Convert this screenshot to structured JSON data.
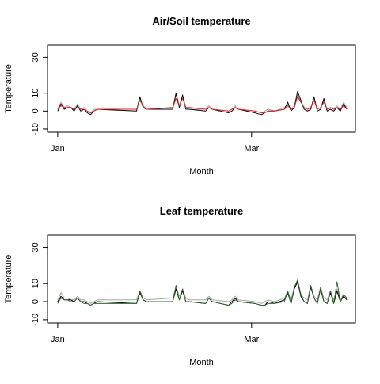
{
  "chart_data": [
    {
      "type": "line",
      "title": "Air/Soil temperature",
      "xlabel": "Month",
      "ylabel": "Temperature",
      "x": [
        0,
        1,
        2,
        3,
        4,
        5,
        6,
        7,
        8,
        9,
        10,
        11,
        12,
        24,
        25,
        26,
        27,
        35,
        36,
        37,
        38,
        39,
        40,
        45,
        46,
        47,
        52,
        53,
        54,
        55,
        60,
        62,
        63,
        64,
        66,
        69,
        70,
        71,
        72,
        73,
        74,
        75,
        76,
        77,
        78,
        79,
        80,
        81,
        82,
        83,
        84,
        85,
        86,
        87,
        88
      ],
      "xlim": [
        -3.1,
        90.6
      ],
      "xticks": [
        {
          "value": 0,
          "label": "Jan"
        },
        {
          "value": 59,
          "label": "Mar"
        }
      ],
      "ylim": [
        -11.8,
        36.8
      ],
      "yticks": [
        -10,
        0,
        10,
        30
      ],
      "series": [
        {
          "color": "#a6a6a6",
          "values": [
            1,
            5,
            2,
            3,
            2,
            1,
            4,
            1,
            2,
            0,
            -1,
            1,
            1,
            1,
            7,
            2,
            1,
            2,
            9,
            3,
            8,
            2,
            1,
            1,
            3,
            1,
            0,
            1,
            3,
            1,
            0,
            -1,
            0,
            1,
            0,
            2,
            4,
            1,
            3,
            9,
            5,
            2,
            1,
            2,
            7,
            1,
            2,
            6,
            1,
            2,
            1,
            3,
            1,
            5,
            2
          ]
        },
        {
          "color": "#000000",
          "values": [
            0,
            4,
            1,
            2,
            2,
            0,
            3,
            0,
            1,
            -1,
            -2,
            0,
            1,
            0,
            8,
            2,
            1,
            1,
            10,
            2,
            9,
            1,
            1,
            0,
            2,
            1,
            -1,
            0,
            2,
            1,
            -1,
            -2,
            -1,
            0,
            0,
            1,
            5,
            0,
            2,
            11,
            6,
            1,
            0,
            1,
            8,
            0,
            1,
            7,
            0,
            1,
            0,
            2,
            0,
            4,
            1
          ]
        },
        {
          "color": "#e0262b",
          "values": [
            1,
            3,
            2,
            2,
            2,
            1,
            2,
            1,
            1,
            0,
            -1,
            0,
            1,
            1,
            6,
            3,
            1,
            2,
            7,
            3,
            7,
            2,
            2,
            1,
            2,
            1,
            0,
            1,
            2,
            1,
            0,
            -1,
            -1,
            0,
            0,
            1,
            3,
            1,
            2,
            8,
            5,
            2,
            1,
            2,
            6,
            1,
            2,
            5,
            1,
            2,
            1,
            2,
            1,
            3,
            1
          ]
        }
      ]
    },
    {
      "type": "line",
      "title": "Leaf temperature",
      "xlabel": "Month",
      "ylabel": "Temperature",
      "x": [
        0,
        1,
        2,
        3,
        4,
        5,
        6,
        7,
        8,
        9,
        10,
        11,
        12,
        24,
        25,
        26,
        27,
        35,
        36,
        37,
        38,
        39,
        40,
        45,
        46,
        47,
        52,
        53,
        54,
        55,
        60,
        62,
        63,
        64,
        66,
        69,
        70,
        71,
        72,
        73,
        74,
        75,
        76,
        77,
        78,
        79,
        80,
        81,
        82,
        83,
        84,
        85,
        86,
        87,
        88
      ],
      "xlim": [
        -3.1,
        90.6
      ],
      "xticks": [
        {
          "value": 0,
          "label": "Jan"
        },
        {
          "value": 59,
          "label": "Mar"
        }
      ],
      "ylim": [
        -11.8,
        36.8
      ],
      "yticks": [
        -10,
        0,
        10,
        30
      ],
      "series": [
        {
          "color": "#a6a6a6",
          "values": [
            1,
            5,
            2,
            2,
            1,
            1,
            3,
            1,
            1,
            0,
            -1,
            0,
            1,
            1,
            6,
            2,
            1,
            2,
            8,
            3,
            7,
            2,
            1,
            1,
            3,
            1,
            0,
            1,
            3,
            1,
            0,
            -1,
            0,
            1,
            0,
            2,
            6,
            1,
            8,
            10,
            4,
            2,
            1,
            9,
            3,
            1,
            8,
            2,
            1,
            6,
            1,
            7,
            1,
            4,
            2
          ]
        },
        {
          "color": "#000000",
          "values": [
            0,
            3,
            1,
            1,
            1,
            0,
            2,
            0,
            0,
            -1,
            -2,
            -1,
            0,
            -1,
            5,
            1,
            0,
            0,
            7,
            1,
            6,
            0,
            0,
            -1,
            2,
            0,
            -2,
            0,
            2,
            0,
            -1,
            -2,
            -2,
            0,
            -1,
            1,
            5,
            -1,
            7,
            11,
            3,
            0,
            -1,
            8,
            2,
            -1,
            7,
            0,
            -1,
            5,
            -1,
            6,
            0,
            3,
            1
          ]
        },
        {
          "color": "#2f6b2f",
          "values": [
            -1,
            2,
            1,
            1,
            0,
            0,
            2,
            0,
            -1,
            -1,
            -2,
            -1,
            -1,
            -1,
            6,
            1,
            0,
            0,
            9,
            1,
            7,
            0,
            0,
            -1,
            2,
            0,
            -2,
            -1,
            1,
            0,
            -1,
            -2,
            -2,
            -1,
            -1,
            0,
            6,
            -1,
            8,
            12,
            4,
            0,
            -1,
            9,
            2,
            -1,
            8,
            0,
            -1,
            6,
            -1,
            11,
            0,
            4,
            2
          ]
        }
      ]
    }
  ]
}
